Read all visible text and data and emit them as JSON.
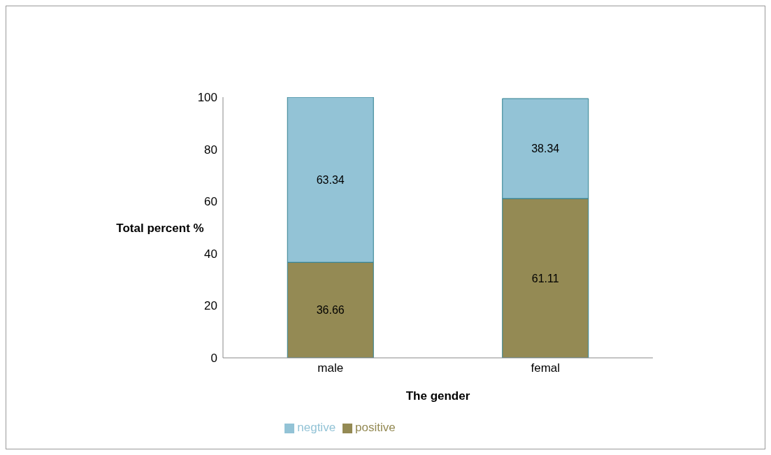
{
  "chart_data": {
    "type": "bar",
    "stacked": true,
    "xlabel": "The gender",
    "ylabel": "Total percent %",
    "categories": [
      "male",
      "femal"
    ],
    "series": [
      {
        "name": "positive",
        "color": "#948a54",
        "values": [
          36.66,
          61.11
        ]
      },
      {
        "name": "negtive",
        "color": "#93c3d6",
        "values": [
          63.34,
          38.34
        ]
      }
    ],
    "ylim": [
      0,
      100
    ],
    "yticks": [
      0,
      20,
      40,
      60,
      80,
      100
    ],
    "data_labels": true,
    "legend": "bottom"
  }
}
